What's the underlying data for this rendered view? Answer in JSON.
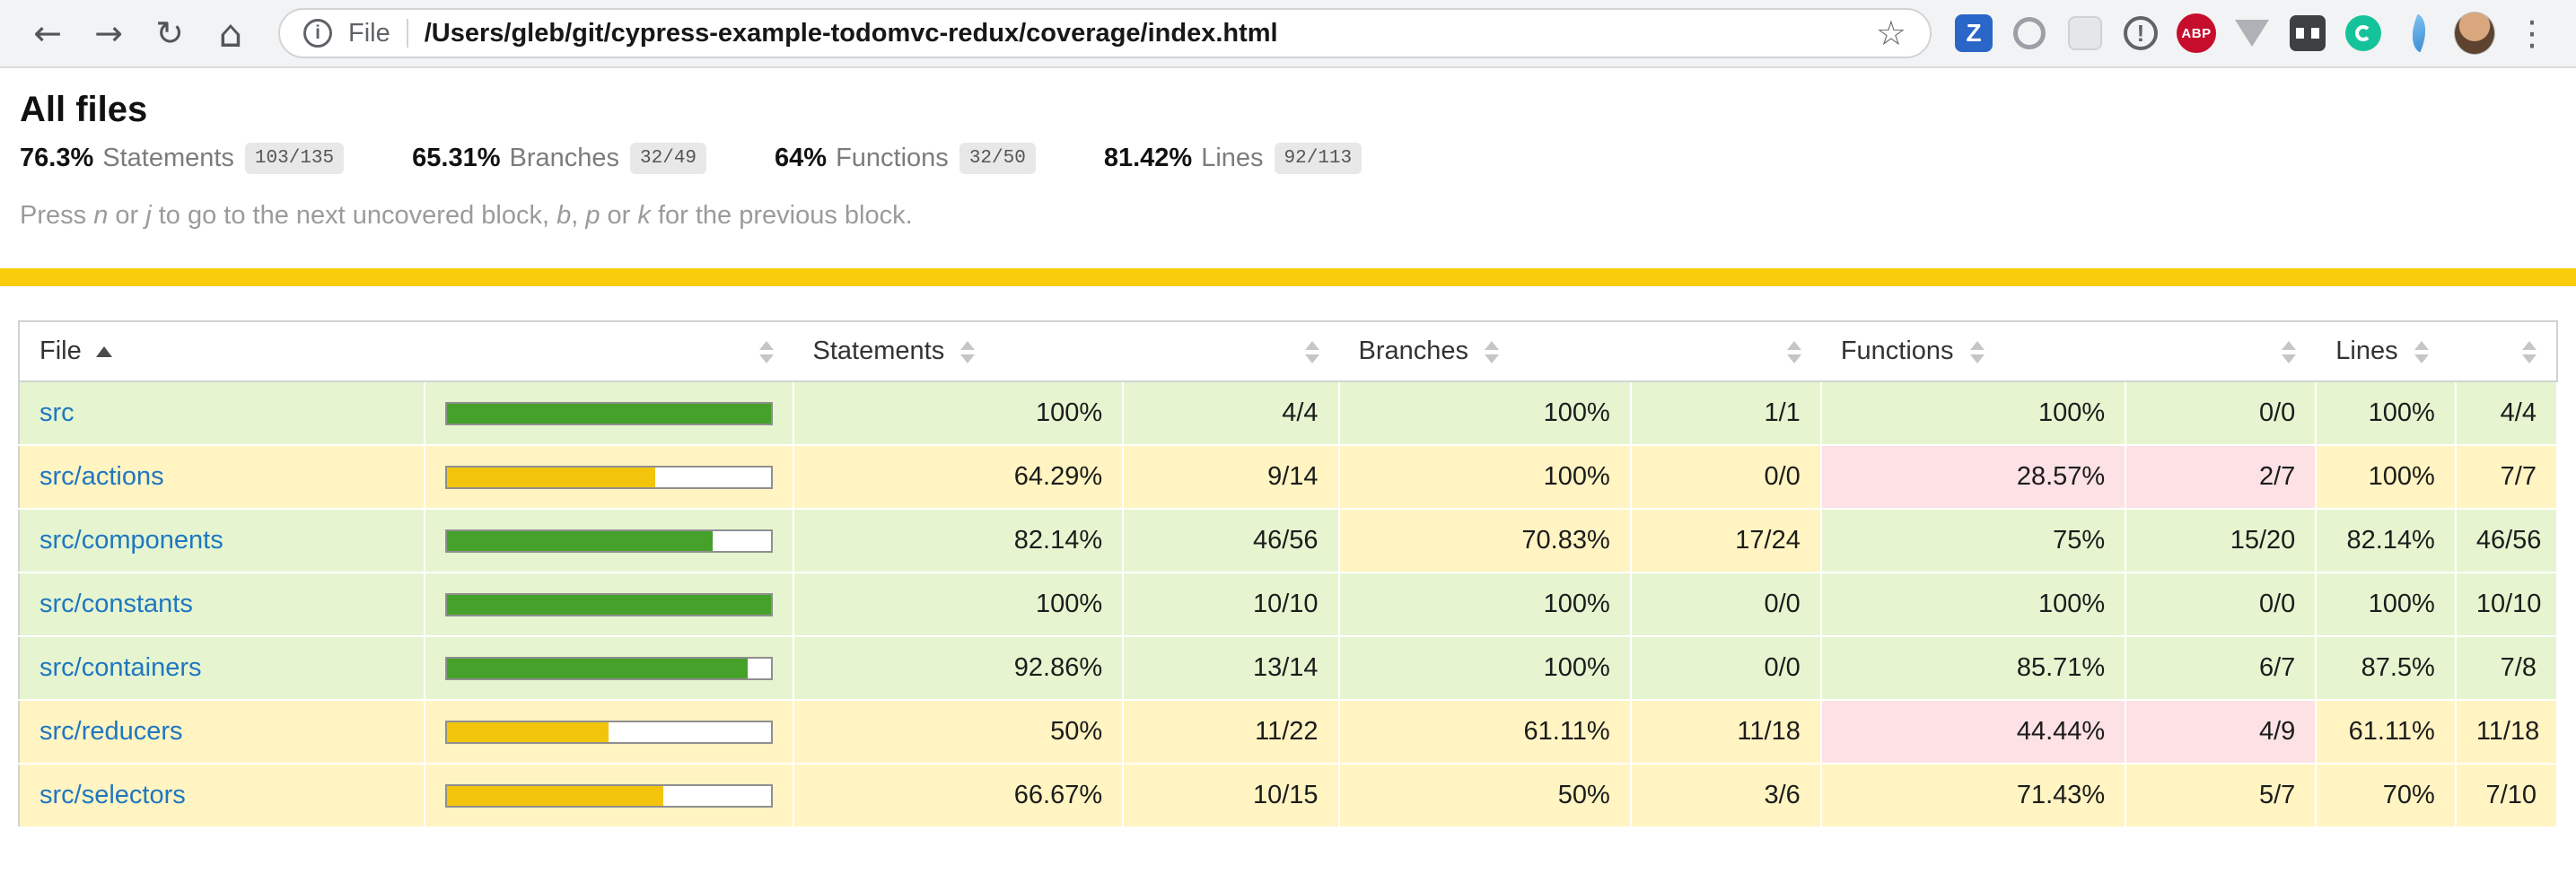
{
  "browser": {
    "scheme_label": "File",
    "url_path": "/Users/gleb/git/cypress-example-todomvc-redux/coverage/index.html",
    "extensions": {
      "zotero_label": "Z",
      "abp_label": "ABP"
    }
  },
  "header": {
    "title": "All files",
    "metrics": [
      {
        "pct": "76.3%",
        "label": "Statements",
        "fraction": "103/135"
      },
      {
        "pct": "65.31%",
        "label": "Branches",
        "fraction": "32/49"
      },
      {
        "pct": "64%",
        "label": "Functions",
        "fraction": "32/50"
      },
      {
        "pct": "81.42%",
        "label": "Lines",
        "fraction": "92/113"
      }
    ],
    "hint": {
      "p1": "Press ",
      "k1": "n",
      "p2": " or ",
      "k2": "j",
      "p3": " to go to the next uncovered block, ",
      "k3": "b",
      "p4": ", ",
      "k4": "p",
      "p5": " or ",
      "k5": "k",
      "p6": " for the previous block."
    }
  },
  "colors": {
    "status_line": "#f9cd0b",
    "high_bg": "#e6f5d0",
    "medium_bg": "#fff4c2",
    "low_bg": "#fce1e5",
    "bar_green": "#45a12a",
    "bar_yellow": "#f2c50c",
    "link": "#1f77c0"
  },
  "table": {
    "header": {
      "file": "File",
      "statements": "Statements",
      "branches": "Branches",
      "functions": "Functions",
      "lines": "Lines"
    },
    "rows": [
      {
        "file": "src",
        "level": "high",
        "bar_pct": 100,
        "statements": {
          "pct": "100%",
          "abs": "4/4",
          "level": "high"
        },
        "branches": {
          "pct": "100%",
          "abs": "1/1",
          "level": "high"
        },
        "functions": {
          "pct": "100%",
          "abs": "0/0",
          "level": "high"
        },
        "lines": {
          "pct": "100%",
          "abs": "4/4",
          "level": "high"
        }
      },
      {
        "file": "src/actions",
        "level": "medium",
        "bar_pct": 64.29,
        "statements": {
          "pct": "64.29%",
          "abs": "9/14",
          "level": "medium"
        },
        "branches": {
          "pct": "100%",
          "abs": "0/0",
          "level": "medium"
        },
        "functions": {
          "pct": "28.57%",
          "abs": "2/7",
          "level": "low"
        },
        "lines": {
          "pct": "100%",
          "abs": "7/7",
          "level": "medium"
        }
      },
      {
        "file": "src/components",
        "level": "high",
        "bar_pct": 82.14,
        "statements": {
          "pct": "82.14%",
          "abs": "46/56",
          "level": "high"
        },
        "branches": {
          "pct": "70.83%",
          "abs": "17/24",
          "level": "medium"
        },
        "functions": {
          "pct": "75%",
          "abs": "15/20",
          "level": "high"
        },
        "lines": {
          "pct": "82.14%",
          "abs": "46/56",
          "level": "high"
        }
      },
      {
        "file": "src/constants",
        "level": "high",
        "bar_pct": 100,
        "statements": {
          "pct": "100%",
          "abs": "10/10",
          "level": "high"
        },
        "branches": {
          "pct": "100%",
          "abs": "0/0",
          "level": "high"
        },
        "functions": {
          "pct": "100%",
          "abs": "0/0",
          "level": "high"
        },
        "lines": {
          "pct": "100%",
          "abs": "10/10",
          "level": "high"
        }
      },
      {
        "file": "src/containers",
        "level": "high",
        "bar_pct": 92.86,
        "statements": {
          "pct": "92.86%",
          "abs": "13/14",
          "level": "high"
        },
        "branches": {
          "pct": "100%",
          "abs": "0/0",
          "level": "high"
        },
        "functions": {
          "pct": "85.71%",
          "abs": "6/7",
          "level": "high"
        },
        "lines": {
          "pct": "87.5%",
          "abs": "7/8",
          "level": "high"
        }
      },
      {
        "file": "src/reducers",
        "level": "medium",
        "bar_pct": 50,
        "statements": {
          "pct": "50%",
          "abs": "11/22",
          "level": "medium"
        },
        "branches": {
          "pct": "61.11%",
          "abs": "11/18",
          "level": "medium"
        },
        "functions": {
          "pct": "44.44%",
          "abs": "4/9",
          "level": "low"
        },
        "lines": {
          "pct": "61.11%",
          "abs": "11/18",
          "level": "medium"
        }
      },
      {
        "file": "src/selectors",
        "level": "medium",
        "bar_pct": 66.67,
        "statements": {
          "pct": "66.67%",
          "abs": "10/15",
          "level": "medium"
        },
        "branches": {
          "pct": "50%",
          "abs": "3/6",
          "level": "medium"
        },
        "functions": {
          "pct": "71.43%",
          "abs": "5/7",
          "level": "medium"
        },
        "lines": {
          "pct": "70%",
          "abs": "7/10",
          "level": "medium"
        }
      }
    ]
  }
}
